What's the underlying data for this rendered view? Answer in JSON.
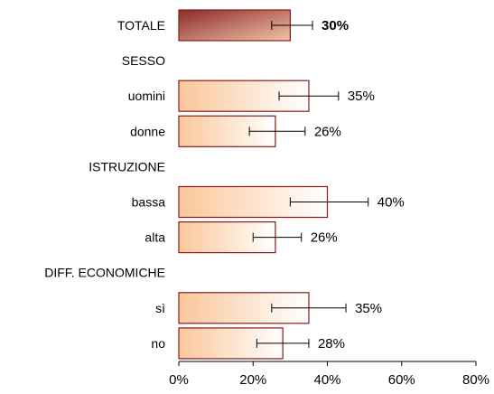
{
  "chart_data": {
    "type": "bar",
    "orientation": "horizontal",
    "title": "",
    "xlabel": "",
    "ylabel": "",
    "xlim": [
      0,
      80
    ],
    "x_ticks": [
      "0%",
      "20%",
      "40%",
      "60%",
      "80%"
    ],
    "rows": [
      {
        "kind": "bar",
        "label": "TOTALE",
        "value": 30,
        "display": "30%",
        "error_low": 25,
        "error_high": 36,
        "highlight": true
      },
      {
        "kind": "group",
        "label": "SESSO"
      },
      {
        "kind": "bar",
        "label": "uomini",
        "value": 35,
        "display": "35%",
        "error_low": 27,
        "error_high": 43
      },
      {
        "kind": "bar",
        "label": "donne",
        "value": 26,
        "display": "26%",
        "error_low": 19,
        "error_high": 34
      },
      {
        "kind": "group",
        "label": "ISTRUZIONE"
      },
      {
        "kind": "bar",
        "label": "bassa",
        "value": 40,
        "display": "40%",
        "error_low": 30,
        "error_high": 51
      },
      {
        "kind": "bar",
        "label": "alta",
        "value": 26,
        "display": "26%",
        "error_low": 20,
        "error_high": 33
      },
      {
        "kind": "group",
        "label": "DIFF. ECONOMICHE"
      },
      {
        "kind": "bar",
        "label": "sì",
        "value": 35,
        "display": "35%",
        "error_low": 25,
        "error_high": 45
      },
      {
        "kind": "bar",
        "label": "no",
        "value": 28,
        "display": "28%",
        "error_low": 21,
        "error_high": 35
      }
    ],
    "colors": {
      "bar_border": "#8b1a1a",
      "bar_fill_start": "#fbc79a",
      "bar_fill_end": "#ffffff",
      "total_fill_start": "#8b2a2a",
      "total_fill_end": "#f2c4a6",
      "error_bar": "#000000",
      "axis": "#000000"
    }
  }
}
